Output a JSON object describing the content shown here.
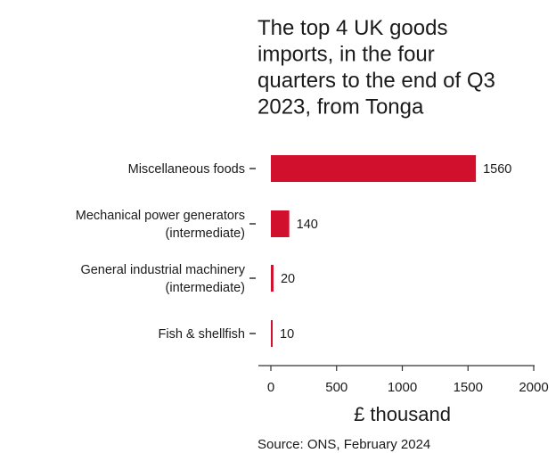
{
  "chart_data": {
    "type": "bar",
    "orientation": "horizontal",
    "title": "The top 4 UK goods imports, in the four quarters to the end of Q3 2023, from Tonga",
    "title_lines": [
      "The top 4 UK goods",
      "imports, in the four",
      "quarters to the end of Q3",
      "2023, from Tonga"
    ],
    "categories": [
      "Miscellaneous foods",
      "Mechanical power generators (intermediate)",
      "General industrial machinery (intermediate)",
      "Fish & shellfish"
    ],
    "category_lines": [
      [
        "Miscellaneous foods"
      ],
      [
        "Mechanical power generators",
        "(intermediate)"
      ],
      [
        "General industrial machinery",
        "(intermediate)"
      ],
      [
        "Fish & shellfish"
      ]
    ],
    "values": [
      1560,
      140,
      20,
      10
    ],
    "value_labels": [
      "1560",
      "140",
      "20",
      "10"
    ],
    "xlabel": "£ thousand",
    "xlim": [
      0,
      2000
    ],
    "xticks": [
      0,
      500,
      1000,
      1500,
      2000
    ],
    "xtick_labels": [
      "0",
      "500",
      "1000",
      "1500",
      "2000"
    ],
    "grid": false,
    "legend": "none",
    "bar_color": "#d0102d",
    "source": "Source: ONS, February 2024"
  }
}
